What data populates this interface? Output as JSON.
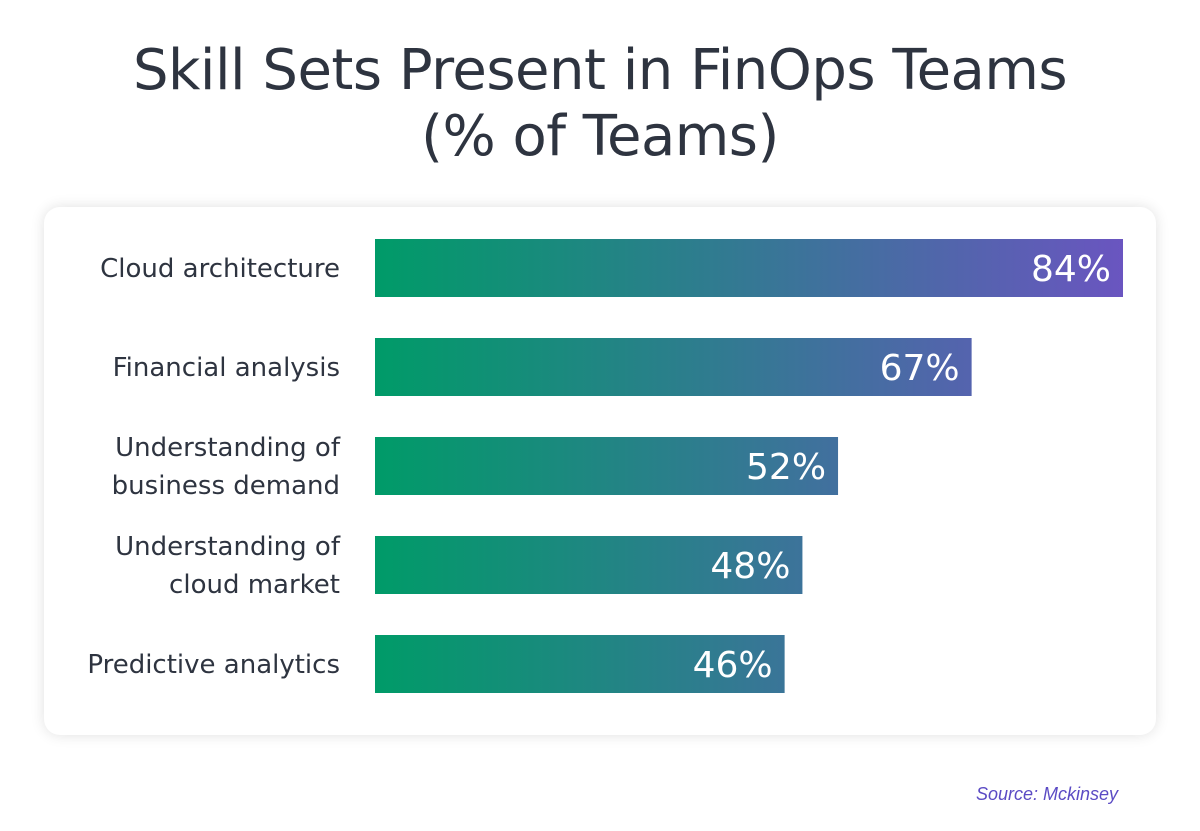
{
  "chart_data": {
    "type": "bar",
    "orientation": "horizontal",
    "title_lines": [
      "Skill Sets Present in FinOps Teams",
      "(% of Teams)"
    ],
    "categories": [
      [
        "Cloud architecture"
      ],
      [
        "Financial analysis"
      ],
      [
        "Understanding of",
        "business demand"
      ],
      [
        "Understanding of",
        "cloud market"
      ],
      [
        "Predictive analytics"
      ]
    ],
    "values": [
      84,
      67,
      52,
      48,
      46
    ],
    "value_labels": [
      "84%",
      "67%",
      "52%",
      "48%",
      "46%"
    ],
    "unit": "%",
    "xlim": [
      0,
      84
    ],
    "grid": false,
    "gradient_colors": [
      "#009b68",
      "#6a55c0"
    ],
    "source": "Source: Mckinsey"
  }
}
